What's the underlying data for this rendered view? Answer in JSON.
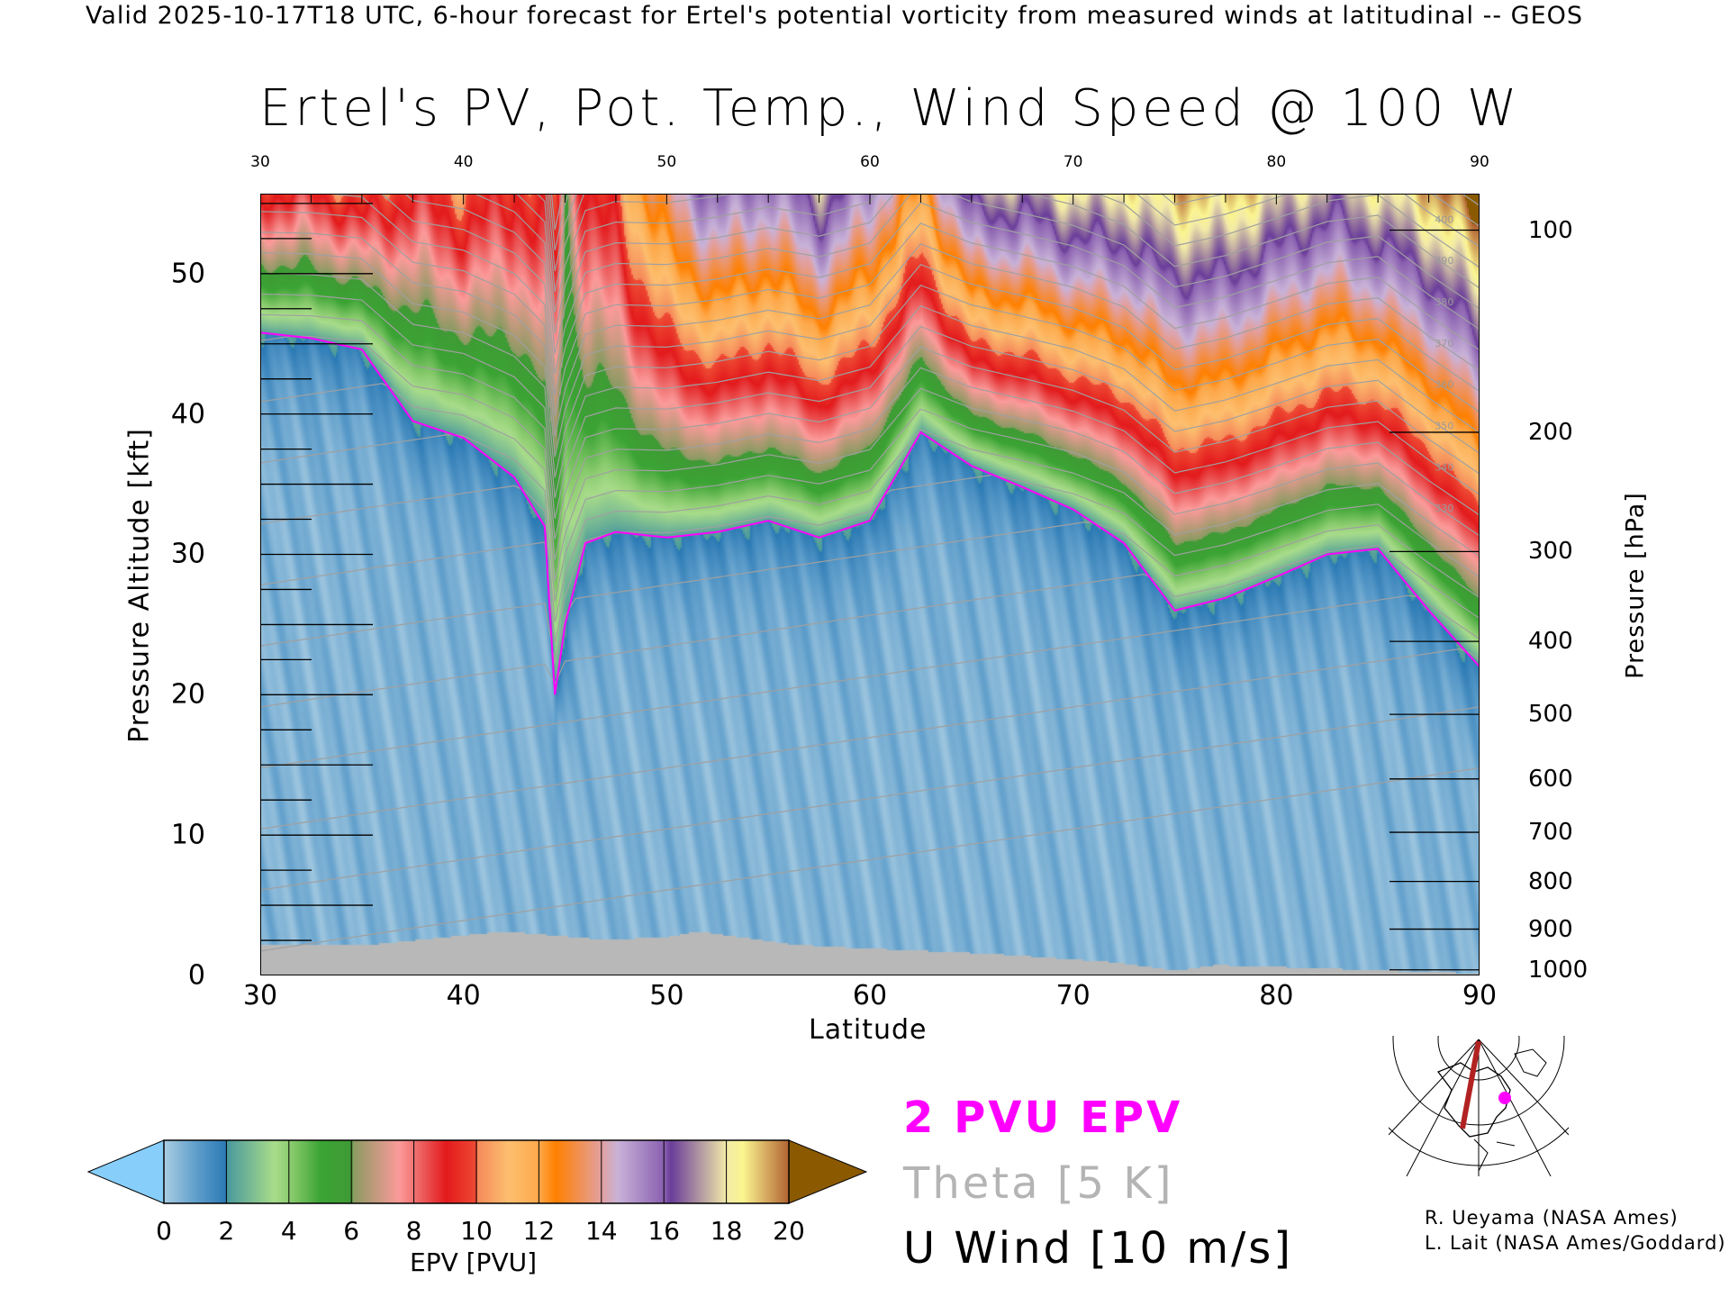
{
  "header": {
    "valid_line": "Valid 2025-10-17T18 UTC, 6-hour forecast for Ertel's potential vorticity from measured winds at latitudinal -- GEOS",
    "title": "Ertel's PV, Pot. Temp., Wind Speed @ 100 W"
  },
  "legend": {
    "epv_line": "2 PVU EPV",
    "theta": "Theta [5 K]",
    "wind": "U Wind [10 m/s]"
  },
  "credits": [
    "R. Ueyama (NASA Ames)",
    "L. Lait (NASA Ames/Goddard)"
  ],
  "colors": {
    "pv_contour": "#ff00ff",
    "theta": "#a0a0a0",
    "terrain": "#b8b8b8",
    "route": "#b22222"
  },
  "chart_data": {
    "type": "heatmap",
    "title": "Ertel's PV, Pot. Temp., Wind Speed @ 100 W",
    "xlabel": "Latitude",
    "ylabel": "Pressure Altitude [kft]",
    "y2label": "Pressure [hPa]",
    "xlim": [
      30,
      90
    ],
    "ylim": [
      0,
      55.7
    ],
    "x_ticks": [
      "30",
      "40",
      "50",
      "60",
      "70",
      "80",
      "90"
    ],
    "x_tick_values": [
      30,
      40,
      50,
      60,
      70,
      80,
      90
    ],
    "y_ticks": [
      "0",
      "10",
      "20",
      "30",
      "40",
      "50"
    ],
    "y_tick_values": [
      0,
      10,
      20,
      30,
      40,
      50
    ],
    "pressure_ticks": [
      "100",
      "200",
      "300",
      "400",
      "500",
      "600",
      "700",
      "800",
      "900",
      "1000"
    ],
    "pressure_tick_kft": [
      53.1,
      38.7,
      30.2,
      23.8,
      18.6,
      14.0,
      10.2,
      6.7,
      3.3,
      0.4
    ],
    "colorbar": {
      "label": "EPV [PVU]",
      "ticks": [
        "0",
        "2",
        "4",
        "6",
        "8",
        "10",
        "12",
        "14",
        "16",
        "18",
        "20"
      ],
      "range": [
        0,
        20
      ],
      "under_color": "#87cefa",
      "over_color": "#8b5a00",
      "stops": [
        [
          0,
          "#a8cce2"
        ],
        [
          1,
          "#5f9ecb"
        ],
        [
          1.98,
          "#2a79b4"
        ],
        [
          2.02,
          "#4c9a9c"
        ],
        [
          3.5,
          "#a8dc8a"
        ],
        [
          4.02,
          "#8ccc70"
        ],
        [
          5,
          "#3ba334"
        ],
        [
          5.98,
          "#3f9a35"
        ],
        [
          6.02,
          "#8a9a62"
        ],
        [
          7.5,
          "#fc9a9a"
        ],
        [
          8.02,
          "#f07070"
        ],
        [
          9,
          "#e31a1c"
        ],
        [
          9.98,
          "#ee4a34"
        ],
        [
          10.02,
          "#f58a5a"
        ],
        [
          11,
          "#fdbf6f"
        ],
        [
          11.98,
          "#fda84a"
        ],
        [
          12.5,
          "#ff8000"
        ],
        [
          13.98,
          "#e2a0a0"
        ],
        [
          14.5,
          "#c8b2d8"
        ],
        [
          15.98,
          "#8a60b0"
        ],
        [
          16.2,
          "#6a3d9a"
        ],
        [
          17.98,
          "#f2eaa8"
        ],
        [
          18.5,
          "#fbf590"
        ],
        [
          20,
          "#b06030"
        ]
      ]
    },
    "latitudes": [
      30,
      32.5,
      35,
      37.5,
      40,
      42.5,
      44,
      44.5,
      45,
      46,
      47.5,
      50,
      52.5,
      55,
      57.5,
      60,
      62.5,
      65,
      67.5,
      70,
      72.5,
      75,
      77.5,
      80,
      82.5,
      85,
      87.5,
      90
    ],
    "tropopause_2pvu_kft": [
      45.8,
      45.4,
      44.6,
      39.5,
      38.3,
      35.5,
      32,
      20,
      25,
      30.8,
      31.6,
      31.2,
      31.6,
      32.4,
      31.2,
      32.4,
      38.7,
      36.3,
      34.8,
      33.2,
      30.8,
      26,
      26.9,
      28.4,
      30,
      30.4,
      26,
      22
    ],
    "pv_at_top_pvu": [
      9,
      9,
      10,
      9,
      10,
      9,
      10,
      10,
      6,
      9,
      10,
      14,
      16,
      15,
      17,
      15,
      12,
      17,
      17,
      18,
      18,
      19,
      19,
      18,
      17,
      18,
      19,
      21
    ],
    "theta_levels_k": [
      290,
      295,
      300,
      305,
      310,
      315,
      320,
      325,
      330,
      335,
      340,
      345,
      350,
      355,
      360,
      365,
      370,
      375,
      380,
      385,
      390,
      395,
      400,
      405,
      410,
      415,
      420
    ],
    "theta_labels": [
      "330",
      "340",
      "350",
      "360",
      "370",
      "380",
      "390",
      "400",
      "410",
      "420"
    ],
    "terrain_lat": [
      30,
      35,
      42,
      47,
      50,
      51.5,
      56,
      58,
      66,
      72,
      75,
      77,
      90
    ],
    "terrain_kft": [
      2.2,
      2.2,
      3.2,
      2.6,
      2.8,
      3.2,
      2.3,
      2.1,
      1.6,
      1.0,
      0.4,
      0.8,
      0.2
    ]
  }
}
